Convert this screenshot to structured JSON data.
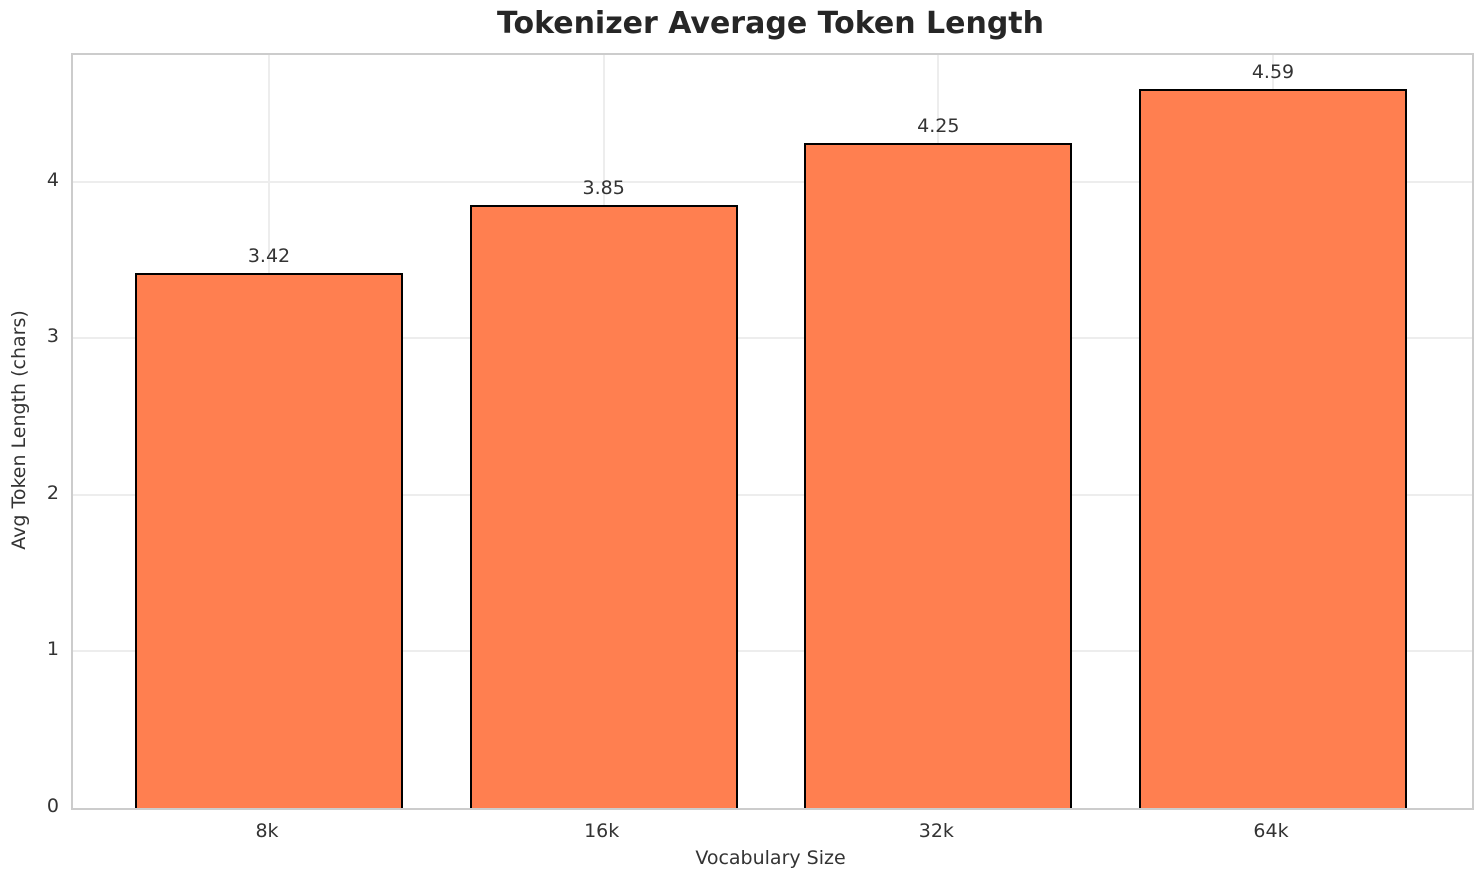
{
  "chart_data": {
    "type": "bar",
    "title": "Tokenizer Average Token Length",
    "xlabel": "Vocabulary Size",
    "ylabel": "Avg Token Length (chars)",
    "categories": [
      "8k",
      "16k",
      "32k",
      "64k"
    ],
    "values": [
      3.42,
      3.85,
      4.25,
      4.59
    ],
    "value_labels": [
      "3.42",
      "3.85",
      "4.25",
      "4.59"
    ],
    "yticks": [
      0,
      1,
      2,
      3,
      4
    ],
    "ylim": [
      0,
      4.81
    ],
    "grid": true,
    "legend": false,
    "bar_color": "#FF7F50",
    "bar_edge_color": "#000000",
    "grid_color": "#ededed",
    "spine_color": "#cccccc",
    "text_color": "#333333",
    "title_color": "#262626",
    "background_color": "#ffffff"
  }
}
